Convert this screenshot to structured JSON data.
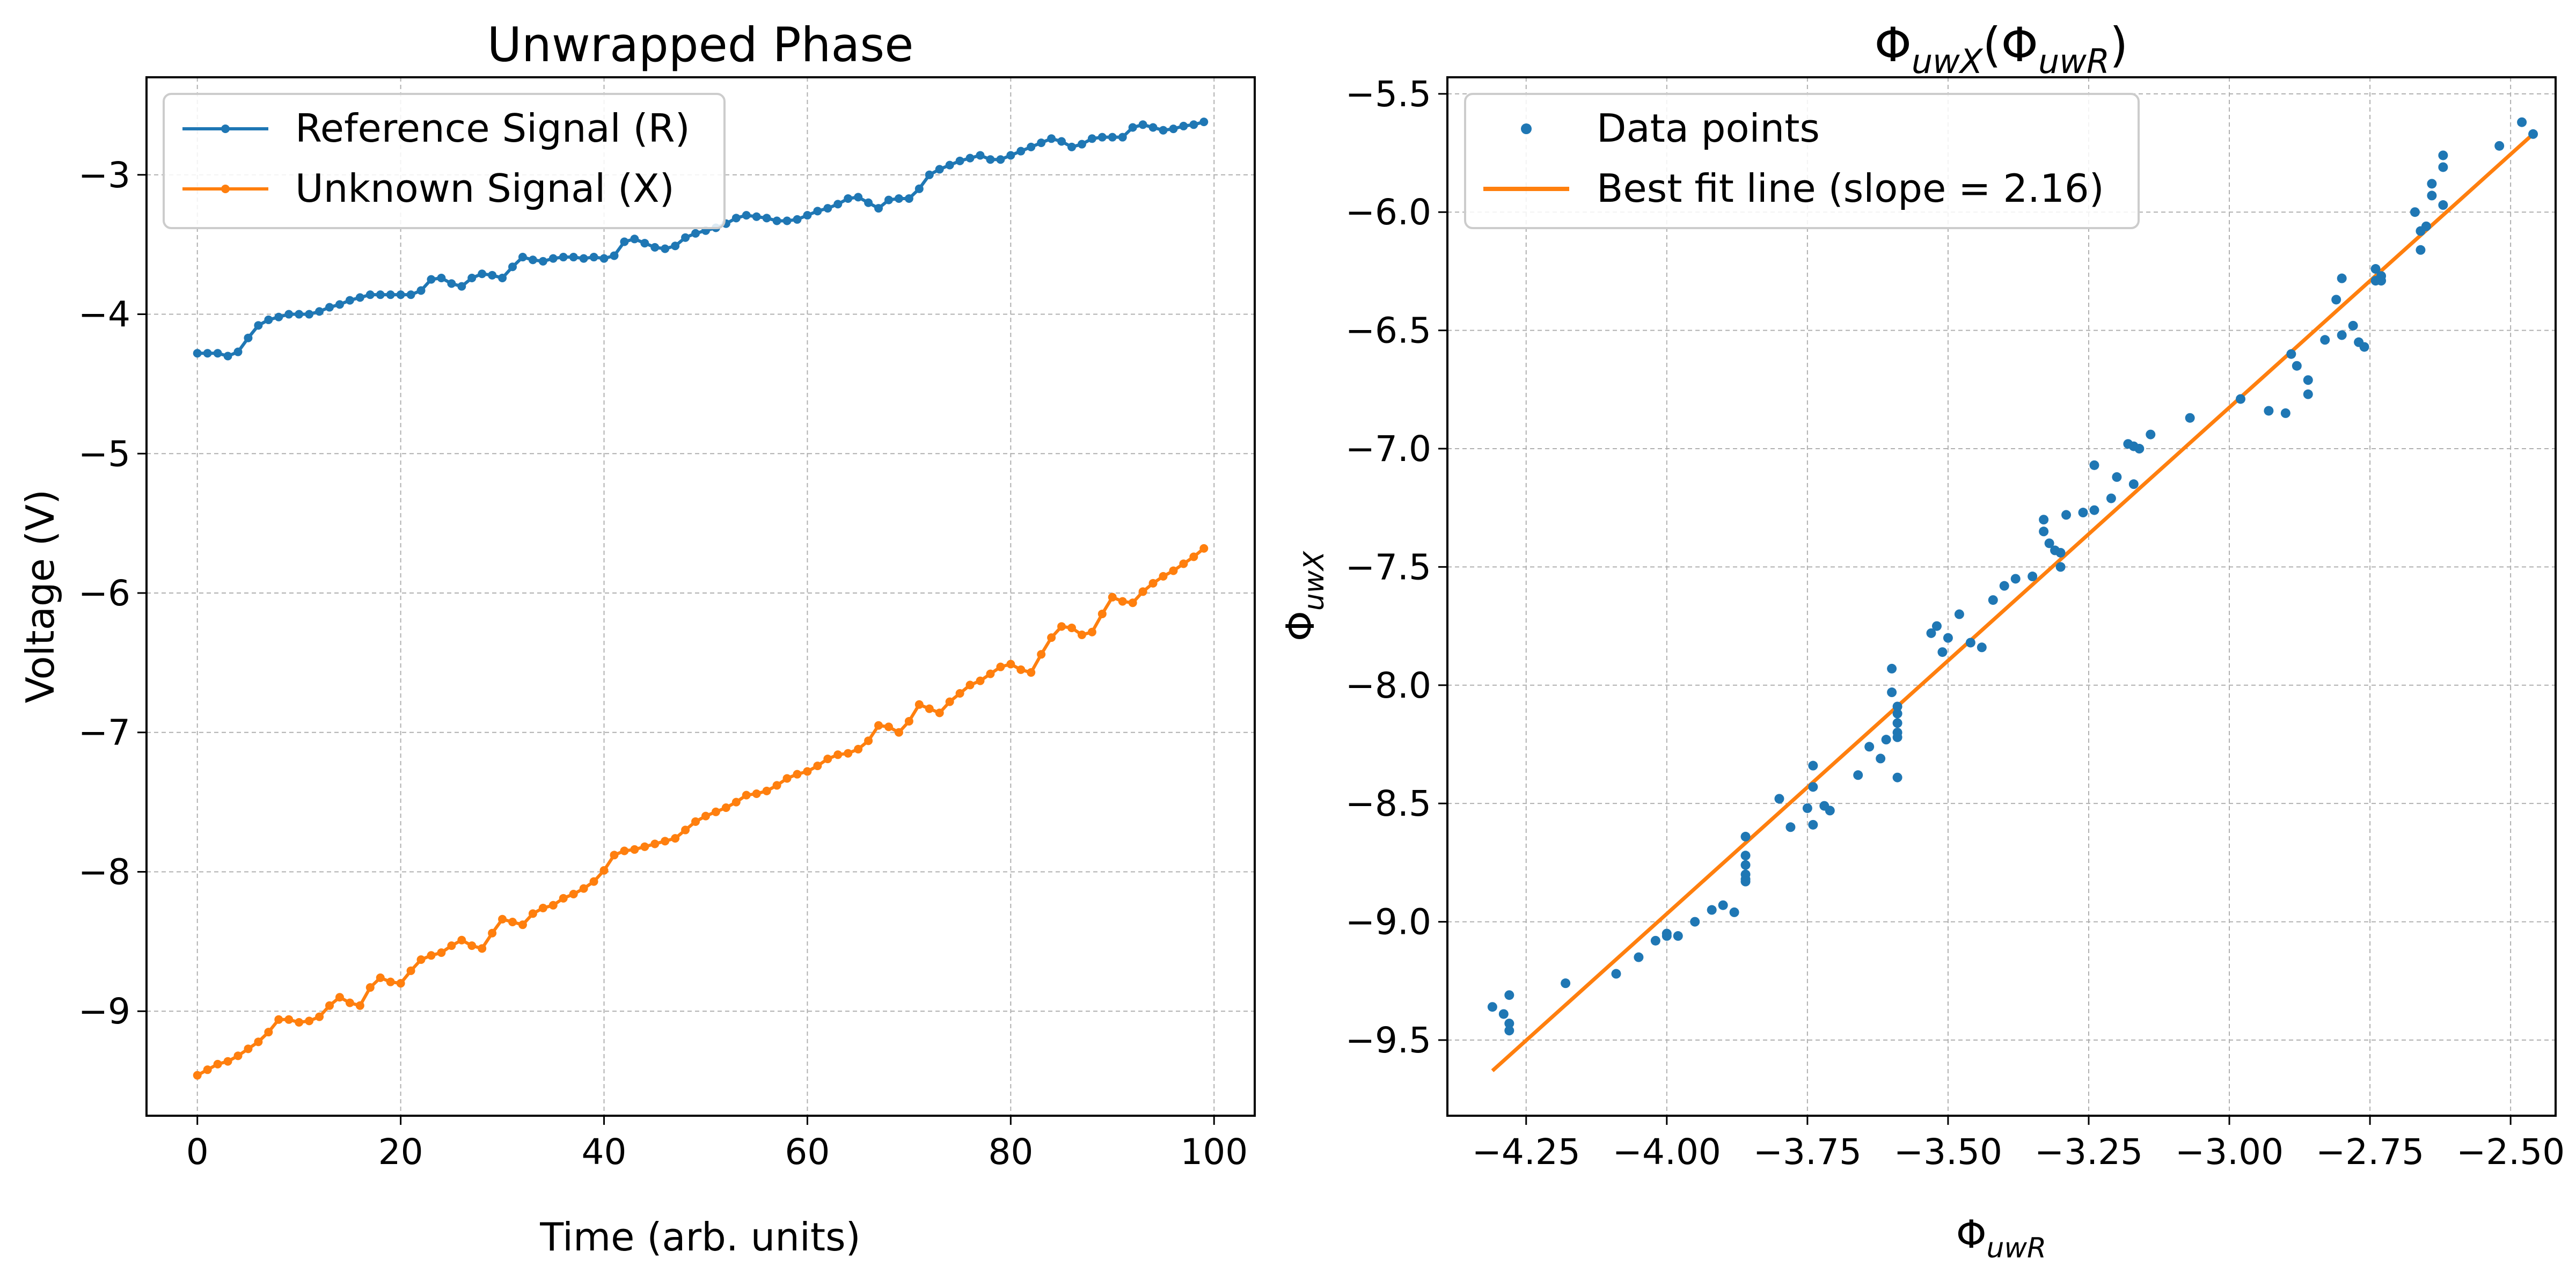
{
  "chart_data": [
    {
      "type": "line",
      "title": "Unwrapped Phase",
      "xlabel": "Time (arb. units)",
      "ylabel": "Voltage (V)",
      "xlim": [
        -5,
        104
      ],
      "ylim": [
        -9.75,
        -2.3
      ],
      "xticks": [
        0,
        20,
        40,
        60,
        80,
        100
      ],
      "yticks": [
        -9,
        -8,
        -7,
        -6,
        -5,
        -4,
        -3
      ],
      "grid": true,
      "legend_position": "top-left",
      "series": [
        {
          "name": "Reference Signal (R)",
          "color": "#1f77b4",
          "x": [
            0,
            1,
            2,
            3,
            4,
            5,
            6,
            7,
            8,
            9,
            10,
            11,
            12,
            13,
            14,
            15,
            16,
            17,
            18,
            19,
            20,
            21,
            22,
            23,
            24,
            25,
            26,
            27,
            28,
            29,
            30,
            31,
            32,
            33,
            34,
            35,
            36,
            37,
            38,
            39,
            40,
            41,
            42,
            43,
            44,
            45,
            46,
            47,
            48,
            49,
            50,
            51,
            52,
            53,
            54,
            55,
            56,
            57,
            58,
            59,
            60,
            61,
            62,
            63,
            64,
            65,
            66,
            67,
            68,
            69,
            70,
            71,
            72,
            73,
            74,
            75,
            76,
            77,
            78,
            79,
            80,
            81,
            82,
            83,
            84,
            85,
            86,
            87,
            88,
            89,
            90,
            91,
            92,
            93,
            94,
            95,
            96,
            97,
            98,
            99
          ],
          "values": [
            -4.28,
            -4.28,
            -4.28,
            -4.3,
            -4.27,
            -4.17,
            -4.08,
            -4.04,
            -4.02,
            -4.0,
            -4.0,
            -4.0,
            -3.98,
            -3.95,
            -3.93,
            -3.9,
            -3.88,
            -3.86,
            -3.86,
            -3.86,
            -3.86,
            -3.86,
            -3.83,
            -3.75,
            -3.74,
            -3.78,
            -3.8,
            -3.74,
            -3.71,
            -3.72,
            -3.74,
            -3.66,
            -3.59,
            -3.61,
            -3.62,
            -3.6,
            -3.59,
            -3.59,
            -3.6,
            -3.59,
            -3.6,
            -3.58,
            -3.48,
            -3.46,
            -3.49,
            -3.52,
            -3.53,
            -3.51,
            -3.45,
            -3.42,
            -3.4,
            -3.38,
            -3.35,
            -3.31,
            -3.29,
            -3.3,
            -3.31,
            -3.33,
            -3.33,
            -3.32,
            -3.29,
            -3.26,
            -3.24,
            -3.21,
            -3.17,
            -3.16,
            -3.2,
            -3.24,
            -3.18,
            -3.17,
            -3.17,
            -3.1,
            -3.0,
            -2.96,
            -2.93,
            -2.9,
            -2.88,
            -2.86,
            -2.89,
            -2.89,
            -2.86,
            -2.83,
            -2.8,
            -2.77,
            -2.74,
            -2.76,
            -2.8,
            -2.78,
            -2.74,
            -2.73,
            -2.73,
            -2.73,
            -2.66,
            -2.64,
            -2.66,
            -2.68,
            -2.67,
            -2.65,
            -2.64,
            -2.62
          ]
        },
        {
          "name": "Unknown Signal (X)",
          "color": "#ff7f0e",
          "x": [
            0,
            1,
            2,
            3,
            4,
            5,
            6,
            7,
            8,
            9,
            10,
            11,
            12,
            13,
            14,
            15,
            16,
            17,
            18,
            19,
            20,
            21,
            22,
            23,
            24,
            25,
            26,
            27,
            28,
            29,
            30,
            31,
            32,
            33,
            34,
            35,
            36,
            37,
            38,
            39,
            40,
            41,
            42,
            43,
            44,
            45,
            46,
            47,
            48,
            49,
            50,
            51,
            52,
            53,
            54,
            55,
            56,
            57,
            58,
            59,
            60,
            61,
            62,
            63,
            64,
            65,
            66,
            67,
            68,
            69,
            70,
            71,
            72,
            73,
            74,
            75,
            76,
            77,
            78,
            79,
            80,
            81,
            82,
            83,
            84,
            85,
            86,
            87,
            88,
            89,
            90,
            91,
            92,
            93,
            94,
            95,
            96,
            97,
            98,
            99
          ],
          "values": [
            -9.46,
            -9.42,
            -9.38,
            -9.36,
            -9.32,
            -9.27,
            -9.22,
            -9.15,
            -9.06,
            -9.06,
            -9.08,
            -9.07,
            -9.04,
            -8.96,
            -8.9,
            -8.94,
            -8.96,
            -8.83,
            -8.76,
            -8.79,
            -8.8,
            -8.71,
            -8.63,
            -8.6,
            -8.58,
            -8.53,
            -8.49,
            -8.53,
            -8.55,
            -8.44,
            -8.34,
            -8.36,
            -8.38,
            -8.3,
            -8.26,
            -8.24,
            -8.19,
            -8.16,
            -8.12,
            -8.07,
            -7.99,
            -7.88,
            -7.85,
            -7.84,
            -7.82,
            -7.8,
            -7.78,
            -7.76,
            -7.7,
            -7.64,
            -7.6,
            -7.57,
            -7.54,
            -7.5,
            -7.45,
            -7.44,
            -7.42,
            -7.38,
            -7.33,
            -7.3,
            -7.28,
            -7.24,
            -7.19,
            -7.16,
            -7.15,
            -7.12,
            -7.06,
            -6.95,
            -6.96,
            -7.0,
            -6.92,
            -6.8,
            -6.83,
            -6.86,
            -6.78,
            -6.72,
            -6.66,
            -6.63,
            -6.58,
            -6.53,
            -6.51,
            -6.55,
            -6.57,
            -6.44,
            -6.32,
            -6.24,
            -6.25,
            -6.3,
            -6.28,
            -6.15,
            -6.03,
            -6.06,
            -6.07,
            -5.99,
            -5.93,
            -5.88,
            -5.84,
            -5.79,
            -5.74,
            -5.68
          ]
        }
      ]
    },
    {
      "type": "scatter",
      "title": "Φ",
      "title_sub1": "uwX",
      "title_mid": "(Φ",
      "title_sub2": "uwR",
      "title_end": ")",
      "xlabel": "Φ",
      "xlabel_sub": "uwR",
      "ylabel": "Φ",
      "ylabel_sub": "uwX",
      "xlim": [
        -4.39,
        -2.42
      ],
      "ylim": [
        -9.82,
        -5.43
      ],
      "xticks": [
        -4.25,
        -4.0,
        -3.75,
        -3.5,
        -3.25,
        -3.0,
        -2.75,
        -2.5
      ],
      "xtick_labels": [
        "−4.25",
        "−4.00",
        "−3.75",
        "−3.50",
        "−3.25",
        "−3.00",
        "−2.75",
        "−2.50"
      ],
      "yticks": [
        -9.5,
        -9.0,
        -8.5,
        -8.0,
        -7.5,
        -7.0,
        -6.5,
        -6.0,
        -5.5
      ],
      "ytick_labels": [
        "−9.5",
        "−9.0",
        "−8.5",
        "−8.0",
        "−7.5",
        "−7.0",
        "−6.5",
        "−6.0",
        "−5.5"
      ],
      "grid": true,
      "legend_position": "top-left",
      "series": [
        {
          "name": "Data points",
          "color": "#1f77b4",
          "x": [
            -4.31,
            -4.29,
            -4.28,
            -4.28,
            -4.28,
            -4.18,
            -4.09,
            -4.05,
            -4.02,
            -4.0,
            -4.0,
            -3.98,
            -3.95,
            -3.92,
            -3.9,
            -3.88,
            -3.86,
            -3.86,
            -3.86,
            -3.86,
            -3.86,
            -3.86,
            -3.8,
            -3.78,
            -3.75,
            -3.74,
            -3.74,
            -3.74,
            -3.72,
            -3.71,
            -3.66,
            -3.64,
            -3.62,
            -3.61,
            -3.6,
            -3.6,
            -3.59,
            -3.59,
            -3.59,
            -3.59,
            -3.59,
            -3.59,
            -3.53,
            -3.52,
            -3.51,
            -3.5,
            -3.48,
            -3.46,
            -3.44,
            -3.42,
            -3.4,
            -3.38,
            -3.35,
            -3.33,
            -3.33,
            -3.32,
            -3.31,
            -3.3,
            -3.3,
            -3.29,
            -3.26,
            -3.24,
            -3.24,
            -3.21,
            -3.2,
            -3.18,
            -3.17,
            -3.17,
            -3.16,
            -3.14,
            -3.07,
            -2.98,
            -2.93,
            -2.9,
            -2.89,
            -2.88,
            -2.86,
            -2.86,
            -2.83,
            -2.81,
            -2.8,
            -2.8,
            -2.78,
            -2.77,
            -2.76,
            -2.74,
            -2.74,
            -2.73,
            -2.73,
            -2.67,
            -2.66,
            -2.66,
            -2.65,
            -2.64,
            -2.64,
            -2.62,
            -2.62,
            -2.62,
            -2.52,
            -2.48,
            -2.46
          ],
          "values": [
            -9.36,
            -9.39,
            -9.43,
            -9.46,
            -9.31,
            -9.26,
            -9.22,
            -9.15,
            -9.08,
            -9.05,
            -9.06,
            -9.06,
            -9.0,
            -8.95,
            -8.93,
            -8.96,
            -8.8,
            -8.82,
            -8.76,
            -8.83,
            -8.72,
            -8.64,
            -8.48,
            -8.6,
            -8.52,
            -8.59,
            -8.43,
            -8.34,
            -8.51,
            -8.53,
            -8.38,
            -8.26,
            -8.31,
            -8.23,
            -8.03,
            -7.93,
            -8.12,
            -8.16,
            -8.2,
            -8.39,
            -8.22,
            -8.09,
            -7.78,
            -7.75,
            -7.86,
            -7.8,
            -7.7,
            -7.82,
            -7.84,
            -7.64,
            -7.58,
            -7.55,
            -7.54,
            -7.35,
            -7.3,
            -7.4,
            -7.43,
            -7.44,
            -7.5,
            -7.28,
            -7.27,
            -7.07,
            -7.26,
            -7.21,
            -7.12,
            -6.98,
            -7.15,
            -6.99,
            -7.0,
            -6.94,
            -6.87,
            -6.79,
            -6.84,
            -6.85,
            -6.6,
            -6.65,
            -6.77,
            -6.71,
            -6.54,
            -6.37,
            -6.52,
            -6.28,
            -6.48,
            -6.55,
            -6.57,
            -6.29,
            -6.24,
            -6.27,
            -6.29,
            -6.0,
            -6.08,
            -6.16,
            -6.06,
            -5.93,
            -5.88,
            -5.81,
            -5.76,
            -5.97,
            -5.72,
            -5.62,
            -5.67
          ]
        }
      ],
      "fit_line": {
        "name": "Best fit line (slope = 2.16)",
        "color": "#ff7f0e",
        "slope": 2.16,
        "x": [
          -4.31,
          -2.46
        ],
        "y": [
          -9.63,
          -5.67
        ]
      }
    }
  ]
}
